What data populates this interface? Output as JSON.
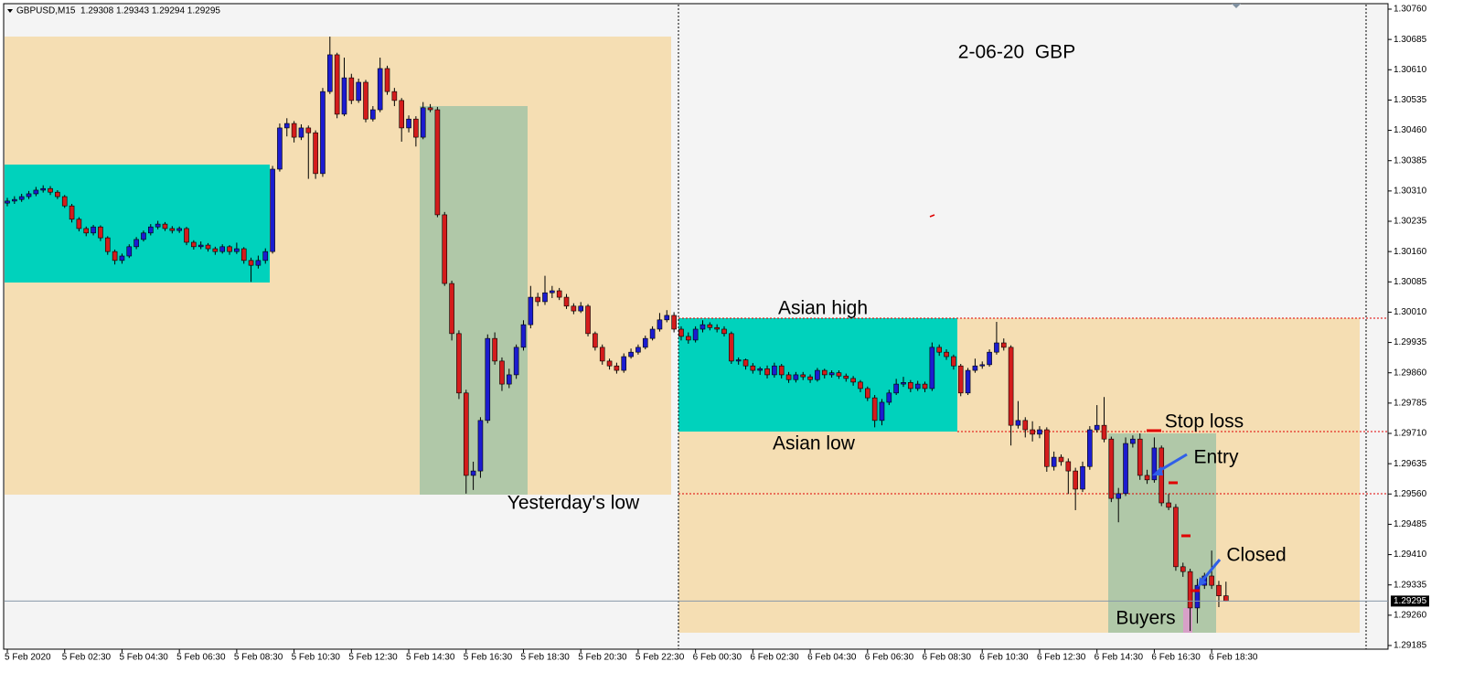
{
  "chart_data": {
    "type": "candlestick",
    "symbol": "GBPUSD,M15  1.29308 1.29343 1.29294 1.29295",
    "title": "2-06-20  GBP",
    "annotations": [
      "Asian high",
      "Asian low",
      "Yesterday's low",
      "Stop loss",
      "Entry",
      "Closed",
      "Buyers"
    ],
    "bull_color": "#1c1cd0",
    "bear_color": "#d41c1c",
    "current_price": 1.29295,
    "ylim": [
      1.29185,
      1.3076
    ],
    "yticks": [
      {
        "value": 1.3076,
        "label": "1.30760"
      },
      1.30685,
      {
        "value": 1.3061,
        "label": "1.30610"
      },
      1.30535,
      {
        "value": 1.3046,
        "label": "1.30460"
      },
      1.30385,
      {
        "value": 1.3031,
        "label": "1.30310"
      },
      1.30235,
      {
        "value": 1.3016,
        "label": "1.30160"
      },
      1.30085,
      {
        "value": 1.3001,
        "label": "1.30010"
      },
      1.29935,
      {
        "value": 1.2986,
        "label": "1.29860"
      },
      1.29785,
      {
        "value": 1.2971,
        "label": "1.29710"
      },
      1.29635,
      {
        "value": 1.2956,
        "label": "1.29560"
      },
      1.29485,
      {
        "value": 1.2941,
        "label": "1.29410"
      },
      1.29335,
      {
        "value": 1.2926,
        "label": "1.29260"
      },
      1.29185
    ],
    "categories": [
      "5 Feb 2020",
      null,
      null,
      null,
      null,
      null,
      null,
      null,
      "5 Feb 02:30",
      null,
      null,
      null,
      null,
      null,
      null,
      null,
      "5 Feb 04:30",
      null,
      null,
      null,
      null,
      null,
      null,
      null,
      "5 Feb 06:30",
      null,
      null,
      null,
      null,
      null,
      null,
      null,
      "5 Feb 08:30",
      null,
      null,
      null,
      null,
      null,
      null,
      null,
      "5 Feb 10:30",
      null,
      null,
      null,
      null,
      null,
      null,
      null,
      "5 Feb 12:30",
      null,
      null,
      null,
      null,
      null,
      null,
      null,
      "5 Feb 14:30",
      null,
      null,
      null,
      null,
      null,
      null,
      null,
      "5 Feb 16:30",
      null,
      null,
      null,
      null,
      null,
      null,
      null,
      "5 Feb 18:30",
      null,
      null,
      null,
      null,
      null,
      null,
      null,
      "5 Feb 20:30",
      null,
      null,
      null,
      null,
      null,
      null,
      null,
      "5 Feb 22:30",
      null,
      null,
      null,
      null,
      null,
      null,
      null,
      "6 Feb 00:30",
      null,
      null,
      null,
      null,
      null,
      null,
      null,
      "6 Feb 02:30",
      null,
      null,
      null,
      null,
      null,
      null,
      null,
      "6 Feb 04:30",
      null,
      null,
      null,
      null,
      null,
      null,
      null,
      "6 Feb 06:30",
      null,
      null,
      null,
      null,
      null,
      null,
      null,
      "6 Feb 08:30",
      null,
      null,
      null,
      null,
      null,
      null,
      null,
      "6 Feb 10:30",
      null,
      null,
      null,
      null,
      null,
      null,
      null,
      "6 Feb 12:30",
      null,
      null,
      null,
      null,
      null,
      null,
      null,
      "6 Feb 14:30",
      null,
      null,
      null,
      null,
      null,
      null,
      null,
      "6 Feb 16:30",
      null,
      null,
      null,
      null,
      null,
      null,
      null,
      "6 Feb 18:30",
      null,
      null
    ],
    "candles": [
      [
        1.3028,
        1.30293,
        1.30272,
        1.30285
      ],
      [
        1.30285,
        1.30297,
        1.30278,
        1.30289
      ],
      [
        1.30289,
        1.30303,
        1.30283,
        1.30296
      ],
      [
        1.30296,
        1.3031,
        1.3029,
        1.30303
      ],
      [
        1.30303,
        1.3032,
        1.30297,
        1.30312
      ],
      [
        1.30312,
        1.30324,
        1.30306,
        1.30316
      ],
      [
        1.30316,
        1.30322,
        1.303,
        1.30307
      ],
      [
        1.30307,
        1.30312,
        1.3029,
        1.30296
      ],
      [
        1.30296,
        1.303,
        1.30268,
        1.30273
      ],
      [
        1.30273,
        1.30278,
        1.30232,
        1.3024
      ],
      [
        1.3024,
        1.30245,
        1.3021,
        1.30217
      ],
      [
        1.30217,
        1.30222,
        1.30198,
        1.30206
      ],
      [
        1.30206,
        1.30226,
        1.302,
        1.30221
      ],
      [
        1.30221,
        1.30225,
        1.30186,
        1.30194
      ],
      [
        1.30194,
        1.30198,
        1.30152,
        1.3016
      ],
      [
        1.3016,
        1.30165,
        1.30128,
        1.30138
      ],
      [
        1.30138,
        1.30155,
        1.3013,
        1.30149
      ],
      [
        1.30149,
        1.30178,
        1.30144,
        1.30172
      ],
      [
        1.30172,
        1.30196,
        1.30166,
        1.3019
      ],
      [
        1.3019,
        1.30212,
        1.30185,
        1.30206
      ],
      [
        1.30206,
        1.30228,
        1.302,
        1.30221
      ],
      [
        1.30221,
        1.30236,
        1.30215,
        1.30228
      ],
      [
        1.30228,
        1.30233,
        1.30211,
        1.30217
      ],
      [
        1.30217,
        1.30223,
        1.30205,
        1.30212
      ],
      [
        1.30212,
        1.30222,
        1.30206,
        1.30217
      ],
      [
        1.30217,
        1.30221,
        1.30176,
        1.30183
      ],
      [
        1.30183,
        1.30188,
        1.30165,
        1.30172
      ],
      [
        1.30172,
        1.30185,
        1.30166,
        1.30176
      ],
      [
        1.30176,
        1.30181,
        1.3016,
        1.30167
      ],
      [
        1.30167,
        1.30172,
        1.30152,
        1.3016
      ],
      [
        1.3016,
        1.30178,
        1.30155,
        1.30172
      ],
      [
        1.30172,
        1.30176,
        1.30152,
        1.3016
      ],
      [
        1.3016,
        1.30182,
        1.30154,
        1.30167
      ],
      [
        1.30167,
        1.30171,
        1.3013,
        1.30138
      ],
      [
        1.30138,
        1.30145,
        1.30085,
        1.30126
      ],
      [
        1.30126,
        1.3015,
        1.30118,
        1.30138
      ],
      [
        1.30138,
        1.30168,
        1.3013,
        1.3016
      ],
      [
        1.3016,
        1.30372,
        1.30155,
        1.30364
      ],
      [
        1.30364,
        1.30477,
        1.30358,
        1.30466
      ],
      [
        1.30466,
        1.3049,
        1.30445,
        1.30477
      ],
      [
        1.30477,
        1.30483,
        1.3043,
        1.30443
      ],
      [
        1.30443,
        1.30475,
        1.30436,
        1.30466
      ],
      [
        1.30466,
        1.30472,
        1.3034,
        1.30454
      ],
      [
        1.30454,
        1.3046,
        1.3034,
        1.30353
      ],
      [
        1.30353,
        1.30565,
        1.30345,
        1.30556
      ],
      [
        1.30556,
        1.30692,
        1.3055,
        1.30647
      ],
      [
        1.30647,
        1.30652,
        1.3049,
        1.305
      ],
      [
        1.305,
        1.3064,
        1.30495,
        1.3059
      ],
      [
        1.3059,
        1.306,
        1.30525,
        1.30534
      ],
      [
        1.30534,
        1.30588,
        1.30528,
        1.30579
      ],
      [
        1.30579,
        1.30585,
        1.3048,
        1.30488
      ],
      [
        1.30488,
        1.3052,
        1.30482,
        1.30511
      ],
      [
        1.30511,
        1.3064,
        1.30505,
        1.30613
      ],
      [
        1.30613,
        1.3062,
        1.30548,
        1.30556
      ],
      [
        1.30556,
        1.30565,
        1.3052,
        1.30534
      ],
      [
        1.30534,
        1.3054,
        1.30432,
        1.30466
      ],
      [
        1.30466,
        1.30497,
        1.30455,
        1.30488
      ],
      [
        1.30488,
        1.30495,
        1.3042,
        1.30443
      ],
      [
        1.30443,
        1.3053,
        1.30438,
        1.30516
      ],
      [
        1.30516,
        1.30525,
        1.30505,
        1.30511
      ],
      [
        1.30511,
        1.30518,
        1.30245,
        1.30251
      ],
      [
        1.30251,
        1.30258,
        1.30075,
        1.30081
      ],
      [
        1.30081,
        1.30088,
        1.2994,
        1.29957
      ],
      [
        1.29957,
        1.29965,
        1.29795,
        1.2981
      ],
      [
        1.2981,
        1.29818,
        1.29561,
        1.29606
      ],
      [
        1.29606,
        1.2964,
        1.2957,
        1.29617
      ],
      [
        1.29617,
        1.2975,
        1.296,
        1.29742
      ],
      [
        1.29742,
        1.29955,
        1.29735,
        1.29945
      ],
      [
        1.29945,
        1.2996,
        1.2988,
        1.29889
      ],
      [
        1.29889,
        1.29898,
        1.29815,
        1.29832
      ],
      [
        1.29832,
        1.2987,
        1.29822,
        1.29855
      ],
      [
        1.29855,
        1.2993,
        1.29845,
        1.29923
      ],
      [
        1.29923,
        1.2999,
        1.29915,
        1.29979
      ],
      [
        1.29979,
        1.30075,
        1.2997,
        1.30047
      ],
      [
        1.30047,
        1.30058,
        1.30025,
        1.30036
      ],
      [
        1.30036,
        1.301,
        1.30028,
        1.30058
      ],
      [
        1.30058,
        1.30075,
        1.30045,
        1.30063
      ],
      [
        1.30063,
        1.3007,
        1.3004,
        1.30047
      ],
      [
        1.30047,
        1.30055,
        1.30018,
        1.30025
      ],
      [
        1.30025,
        1.30032,
        1.30005,
        1.30013
      ],
      [
        1.30013,
        1.30035,
        1.30008,
        1.30025
      ],
      [
        1.30025,
        1.3003,
        1.2995,
        1.29957
      ],
      [
        1.29957,
        1.29962,
        1.29915,
        1.29923
      ],
      [
        1.29923,
        1.2993,
        1.2988,
        1.29889
      ],
      [
        1.29889,
        1.29895,
        1.29868,
        1.29877
      ],
      [
        1.29877,
        1.29885,
        1.29858,
        1.29866
      ],
      [
        1.29866,
        1.29908,
        1.2986,
        1.299
      ],
      [
        1.299,
        1.2992,
        1.29895,
        1.29911
      ],
      [
        1.29911,
        1.2993,
        1.29905,
        1.29923
      ],
      [
        1.29923,
        1.29952,
        1.29918,
        1.29945
      ],
      [
        1.29945,
        1.29975,
        1.2994,
        1.29968
      ],
      [
        1.29968,
        1.30008,
        1.29962,
        1.29991
      ],
      [
        1.29991,
        1.30015,
        1.29985,
        1.30002
      ],
      [
        1.30002,
        1.3001,
        1.2996,
        1.29968
      ],
      [
        1.29968,
        1.29975,
        1.2994,
        1.2995
      ],
      [
        1.2995,
        1.2996,
        1.29932,
        1.29941
      ],
      [
        1.29941,
        1.29975,
        1.29935,
        1.29968
      ],
      [
        1.29968,
        1.2999,
        1.2996,
        1.29979
      ],
      [
        1.29979,
        1.29985,
        1.29965,
        1.29972
      ],
      [
        1.29972,
        1.2998,
        1.2996,
        1.29968
      ],
      [
        1.29968,
        1.29975,
        1.2995,
        1.29957
      ],
      [
        1.29957,
        1.29962,
        1.29882,
        1.29889
      ],
      [
        1.29889,
        1.29898,
        1.2988,
        1.29892
      ],
      [
        1.29892,
        1.29895,
        1.29868,
        1.29877
      ],
      [
        1.29877,
        1.29884,
        1.29858,
        1.29866
      ],
      [
        1.29866,
        1.29875,
        1.29855,
        1.2987
      ],
      [
        1.2987,
        1.29878,
        1.29846,
        1.29855
      ],
      [
        1.29855,
        1.29885,
        1.29848,
        1.29877
      ],
      [
        1.29877,
        1.29882,
        1.29846,
        1.29855
      ],
      [
        1.29855,
        1.29862,
        1.29835,
        1.29843
      ],
      [
        1.29843,
        1.29862,
        1.29836,
        1.29855
      ],
      [
        1.29855,
        1.29862,
        1.29842,
        1.2985
      ],
      [
        1.2985,
        1.29856,
        1.29835,
        1.29843
      ],
      [
        1.29843,
        1.29872,
        1.29838,
        1.29866
      ],
      [
        1.29866,
        1.2987,
        1.29846,
        1.29855
      ],
      [
        1.29855,
        1.29866,
        1.29848,
        1.2986
      ],
      [
        1.2986,
        1.29866,
        1.29845,
        1.29852
      ],
      [
        1.29852,
        1.29858,
        1.29838,
        1.29846
      ],
      [
        1.29846,
        1.29852,
        1.29828,
        1.29837
      ],
      [
        1.29837,
        1.29842,
        1.29812,
        1.29821
      ],
      [
        1.29821,
        1.29826,
        1.2979,
        1.29798
      ],
      [
        1.29798,
        1.29805,
        1.29725,
        1.29742
      ],
      [
        1.29742,
        1.29795,
        1.2973,
        1.29787
      ],
      [
        1.29787,
        1.29818,
        1.2978,
        1.2981
      ],
      [
        1.2981,
        1.29845,
        1.29805,
        1.29832
      ],
      [
        1.29832,
        1.2985,
        1.29825,
        1.29836
      ],
      [
        1.29836,
        1.29842,
        1.29812,
        1.29821
      ],
      [
        1.29821,
        1.2984,
        1.29815,
        1.29832
      ],
      [
        1.29832,
        1.29838,
        1.29812,
        1.29821
      ],
      [
        1.29821,
        1.29935,
        1.29815,
        1.29923
      ],
      [
        1.29923,
        1.2993,
        1.29902,
        1.29911
      ],
      [
        1.29911,
        1.29918,
        1.29892,
        1.299
      ],
      [
        1.299,
        1.29905,
        1.29868,
        1.29877
      ],
      [
        1.29877,
        1.29882,
        1.29802,
        1.2981
      ],
      [
        1.2981,
        1.29872,
        1.29805,
        1.29866
      ],
      [
        1.29866,
        1.29895,
        1.2986,
        1.29877
      ],
      [
        1.29877,
        1.29888,
        1.2987,
        1.2988
      ],
      [
        1.2988,
        1.29918,
        1.29875,
        1.29911
      ],
      [
        1.29911,
        1.29986,
        1.29905,
        1.29934
      ],
      [
        1.29934,
        1.29945,
        1.29915,
        1.29923
      ],
      [
        1.29923,
        1.29928,
        1.2968,
        1.2973
      ],
      [
        1.2973,
        1.2979,
        1.29722,
        1.29742
      ],
      [
        1.29742,
        1.2975,
        1.297,
        1.29719
      ],
      [
        1.29719,
        1.2974,
        1.2969,
        1.29708
      ],
      [
        1.29708,
        1.29728,
        1.29698,
        1.29719
      ],
      [
        1.29719,
        1.29725,
        1.29615,
        1.29628
      ],
      [
        1.29628,
        1.29665,
        1.29618,
        1.29651
      ],
      [
        1.29651,
        1.29658,
        1.2963,
        1.2964
      ],
      [
        1.2964,
        1.29648,
        1.2956,
        1.29617
      ],
      [
        1.29617,
        1.29625,
        1.2952,
        1.29572
      ],
      [
        1.29572,
        1.2964,
        1.29565,
        1.29628
      ],
      [
        1.29628,
        1.29728,
        1.2962,
        1.29719
      ],
      [
        1.29719,
        1.2978,
        1.29712,
        1.2973
      ],
      [
        1.2973,
        1.298,
        1.29688,
        1.29696
      ],
      [
        1.29696,
        1.29702,
        1.2954,
        1.29549
      ],
      [
        1.29549,
        1.29575,
        1.2949,
        1.29561
      ],
      [
        1.29561,
        1.297,
        1.29555,
        1.29685
      ],
      [
        1.29685,
        1.29705,
        1.29675,
        1.29696
      ],
      [
        1.29696,
        1.2971,
        1.29595,
        1.29606
      ],
      [
        1.29606,
        1.2962,
        1.29585,
        1.29595
      ],
      [
        1.29595,
        1.297,
        1.29588,
        1.29674
      ],
      [
        1.29674,
        1.2968,
        1.2953,
        1.29538
      ],
      [
        1.29538,
        1.2956,
        1.2952,
        1.29527
      ],
      [
        1.29527,
        1.29535,
        1.2937,
        1.2938
      ],
      [
        1.2938,
        1.2939,
        1.29355,
        1.29368
      ],
      [
        1.29368,
        1.29375,
        1.29221,
        1.29278
      ],
      [
        1.29278,
        1.2935,
        1.2924,
        1.29334
      ],
      [
        1.29334,
        1.29365,
        1.29325,
        1.29357
      ],
      [
        1.29357,
        1.2942,
        1.29325,
        1.29334
      ],
      [
        1.29334,
        1.29345,
        1.2928,
        1.29308
      ],
      [
        1.29308,
        1.29343,
        1.29294,
        1.29295
      ]
    ]
  }
}
